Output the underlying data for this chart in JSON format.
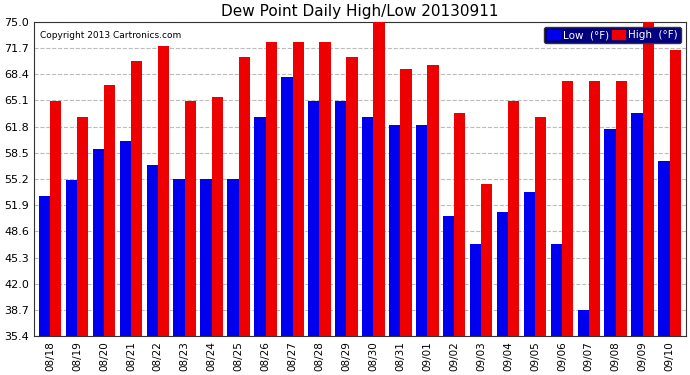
{
  "title": "Dew Point Daily High/Low 20130911",
  "copyright": "Copyright 2013 Cartronics.com",
  "dates": [
    "08/18",
    "08/19",
    "08/20",
    "08/21",
    "08/22",
    "08/23",
    "08/24",
    "08/25",
    "08/26",
    "08/27",
    "08/28",
    "08/29",
    "08/30",
    "08/31",
    "09/01",
    "09/02",
    "09/03",
    "09/04",
    "09/05",
    "09/06",
    "09/07",
    "09/08",
    "09/09",
    "09/10"
  ],
  "low_values": [
    53.0,
    55.0,
    59.0,
    60.0,
    57.0,
    55.2,
    55.2,
    55.2,
    63.0,
    68.0,
    65.0,
    65.0,
    63.0,
    62.0,
    62.0,
    50.5,
    47.0,
    51.0,
    53.5,
    47.0,
    38.7,
    61.5,
    63.5,
    57.5
  ],
  "high_values": [
    65.0,
    63.0,
    67.0,
    70.0,
    72.0,
    65.0,
    65.5,
    70.5,
    72.5,
    72.5,
    72.5,
    70.5,
    76.0,
    69.0,
    69.5,
    63.5,
    54.5,
    65.0,
    63.0,
    67.5,
    67.5,
    67.5,
    76.0,
    71.5
  ],
  "low_color": "#0000ee",
  "high_color": "#ee0000",
  "bg_color": "#ffffff",
  "plot_bg_color": "#ffffff",
  "grid_color": "#bbbbbb",
  "yticks": [
    35.4,
    38.7,
    42.0,
    45.3,
    48.6,
    51.9,
    55.2,
    58.5,
    61.8,
    65.1,
    68.4,
    71.7,
    75.0
  ],
  "ymin": 35.4,
  "ymax": 75.0,
  "legend_low_label": "Low  (°F)",
  "legend_high_label": "High  (°F)"
}
